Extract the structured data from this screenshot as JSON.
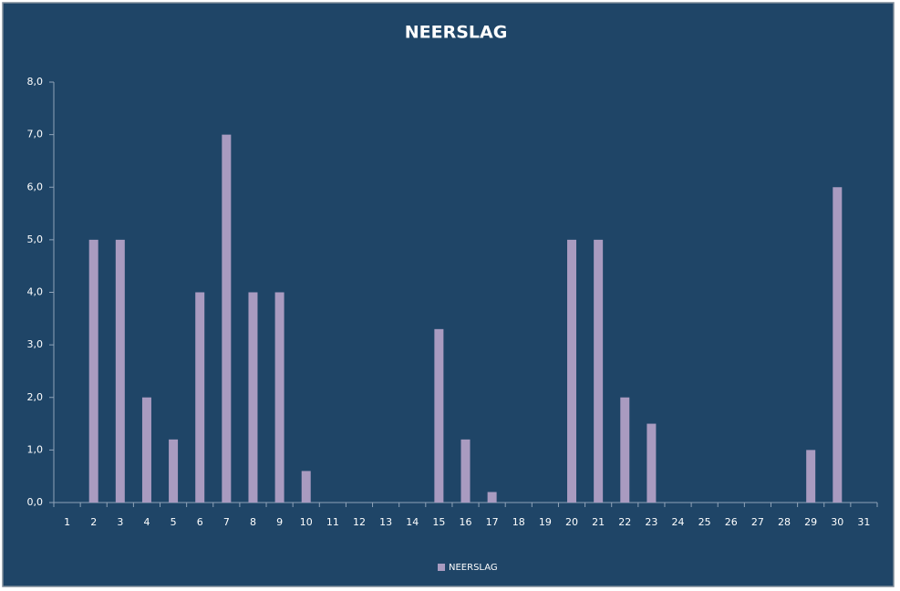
{
  "chart_data": {
    "type": "bar",
    "title": "NEERSLAG",
    "categories": [
      "1",
      "2",
      "3",
      "4",
      "5",
      "6",
      "7",
      "8",
      "9",
      "10",
      "11",
      "12",
      "13",
      "14",
      "15",
      "16",
      "17",
      "18",
      "19",
      "20",
      "21",
      "22",
      "23",
      "24",
      "25",
      "26",
      "27",
      "28",
      "29",
      "30",
      "31"
    ],
    "series": [
      {
        "name": "NEERSLAG",
        "color": "#a99bc0",
        "values": [
          0,
          5,
          5,
          2,
          1.2,
          4,
          7,
          4,
          4,
          0.6,
          0,
          0,
          0,
          0,
          3.3,
          1.2,
          0.2,
          0,
          0,
          5,
          5,
          2,
          1.5,
          0,
          0,
          0,
          0,
          0,
          1,
          6,
          0
        ]
      }
    ],
    "ylim": [
      0,
      8
    ],
    "yticks": [
      {
        "value": 0,
        "label": "0,0"
      },
      {
        "value": 1,
        "label": "1,0"
      },
      {
        "value": 2,
        "label": "2,0"
      },
      {
        "value": 3,
        "label": "3,0"
      },
      {
        "value": 4,
        "label": "4,0"
      },
      {
        "value": 5,
        "label": "5,0"
      },
      {
        "value": 6,
        "label": "6,0"
      },
      {
        "value": 7,
        "label": "7,0"
      },
      {
        "value": 8,
        "label": "8,0"
      }
    ],
    "grid": false,
    "legend": "bottom"
  }
}
